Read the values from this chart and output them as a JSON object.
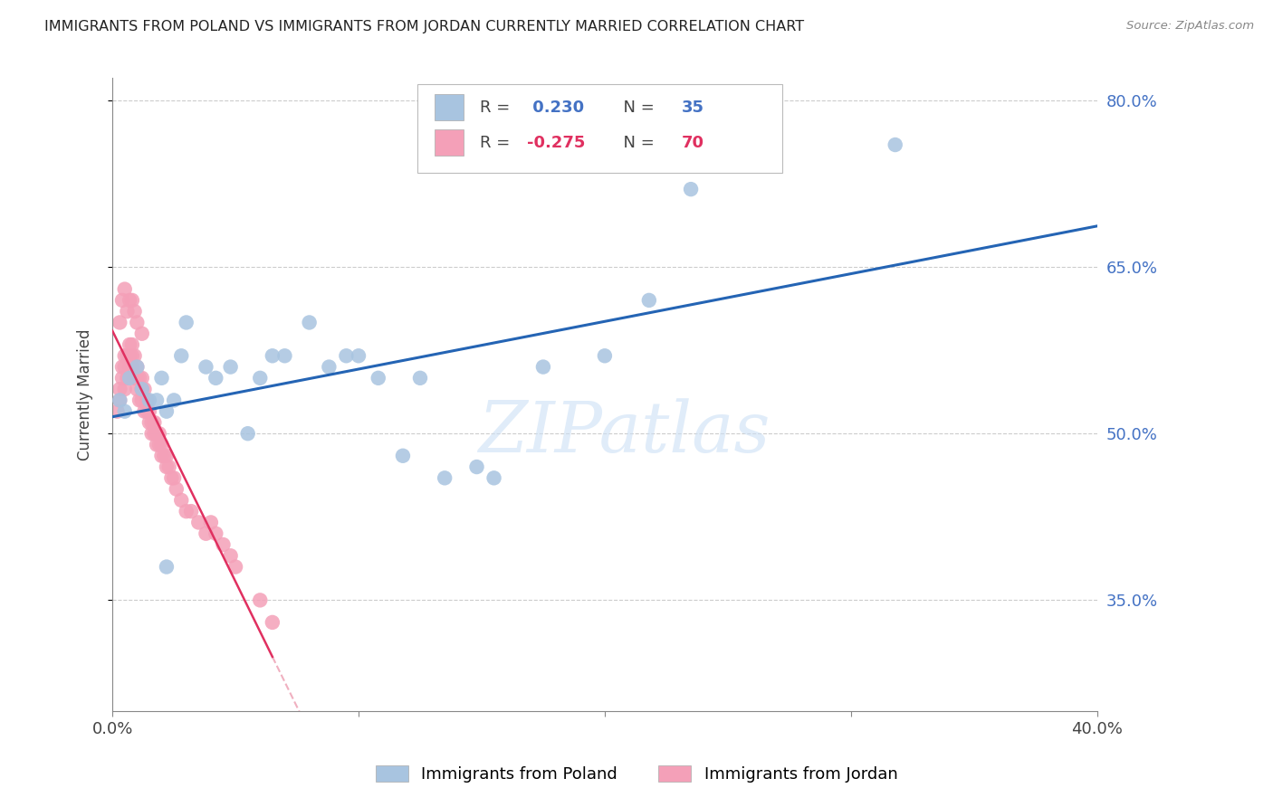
{
  "title": "IMMIGRANTS FROM POLAND VS IMMIGRANTS FROM JORDAN CURRENTLY MARRIED CORRELATION CHART",
  "source": "Source: ZipAtlas.com",
  "ylabel": "Currently Married",
  "xmin": 0.0,
  "xmax": 0.4,
  "ymin": 0.25,
  "ymax": 0.82,
  "yticks": [
    0.35,
    0.5,
    0.65,
    0.8
  ],
  "ytick_labels": [
    "35.0%",
    "50.0%",
    "65.0%",
    "80.0%"
  ],
  "xticks": [
    0.0,
    0.1,
    0.2,
    0.3,
    0.4
  ],
  "xtick_labels": [
    "0.0%",
    "",
    "",
    "",
    "40.0%"
  ],
  "poland_R": 0.23,
  "poland_N": 35,
  "jordan_R": -0.275,
  "jordan_N": 70,
  "poland_color": "#a8c4e0",
  "poland_line_color": "#2464b4",
  "jordan_color": "#f4a0b8",
  "jordan_line_color": "#e03060",
  "jordan_line_color_dashed": "#f0b0c0",
  "watermark": "ZIPatlas",
  "legend_poland_label": "Immigrants from Poland",
  "legend_jordan_label": "Immigrants from Jordan",
  "poland_x": [
    0.003,
    0.005,
    0.007,
    0.01,
    0.012,
    0.015,
    0.018,
    0.02,
    0.022,
    0.025,
    0.028,
    0.03,
    0.038,
    0.042,
    0.048,
    0.055,
    0.06,
    0.065,
    0.07,
    0.08,
    0.088,
    0.095,
    0.1,
    0.108,
    0.118,
    0.125,
    0.135,
    0.148,
    0.155,
    0.175,
    0.2,
    0.218,
    0.235,
    0.318,
    0.022
  ],
  "poland_y": [
    0.53,
    0.52,
    0.55,
    0.56,
    0.54,
    0.53,
    0.53,
    0.55,
    0.52,
    0.53,
    0.57,
    0.6,
    0.56,
    0.55,
    0.56,
    0.5,
    0.55,
    0.57,
    0.57,
    0.6,
    0.56,
    0.57,
    0.57,
    0.55,
    0.48,
    0.55,
    0.46,
    0.47,
    0.46,
    0.56,
    0.57,
    0.62,
    0.72,
    0.76,
    0.38
  ],
  "jordan_x": [
    0.002,
    0.003,
    0.003,
    0.004,
    0.004,
    0.005,
    0.005,
    0.005,
    0.006,
    0.006,
    0.007,
    0.007,
    0.007,
    0.008,
    0.008,
    0.008,
    0.009,
    0.009,
    0.01,
    0.01,
    0.01,
    0.011,
    0.011,
    0.012,
    0.012,
    0.012,
    0.013,
    0.013,
    0.014,
    0.014,
    0.015,
    0.015,
    0.016,
    0.016,
    0.017,
    0.017,
    0.018,
    0.018,
    0.019,
    0.019,
    0.02,
    0.02,
    0.021,
    0.022,
    0.022,
    0.023,
    0.024,
    0.025,
    0.026,
    0.028,
    0.03,
    0.032,
    0.035,
    0.038,
    0.04,
    0.042,
    0.045,
    0.048,
    0.05,
    0.003,
    0.004,
    0.005,
    0.006,
    0.007,
    0.008,
    0.009,
    0.01,
    0.012,
    0.06,
    0.065
  ],
  "jordan_y": [
    0.52,
    0.53,
    0.54,
    0.55,
    0.56,
    0.54,
    0.56,
    0.57,
    0.55,
    0.57,
    0.56,
    0.57,
    0.58,
    0.56,
    0.57,
    0.58,
    0.55,
    0.57,
    0.54,
    0.55,
    0.56,
    0.53,
    0.55,
    0.53,
    0.54,
    0.55,
    0.52,
    0.54,
    0.52,
    0.53,
    0.51,
    0.52,
    0.5,
    0.51,
    0.5,
    0.51,
    0.49,
    0.5,
    0.49,
    0.5,
    0.48,
    0.49,
    0.48,
    0.47,
    0.48,
    0.47,
    0.46,
    0.46,
    0.45,
    0.44,
    0.43,
    0.43,
    0.42,
    0.41,
    0.42,
    0.41,
    0.4,
    0.39,
    0.38,
    0.6,
    0.62,
    0.63,
    0.61,
    0.62,
    0.62,
    0.61,
    0.6,
    0.59,
    0.35,
    0.33
  ]
}
